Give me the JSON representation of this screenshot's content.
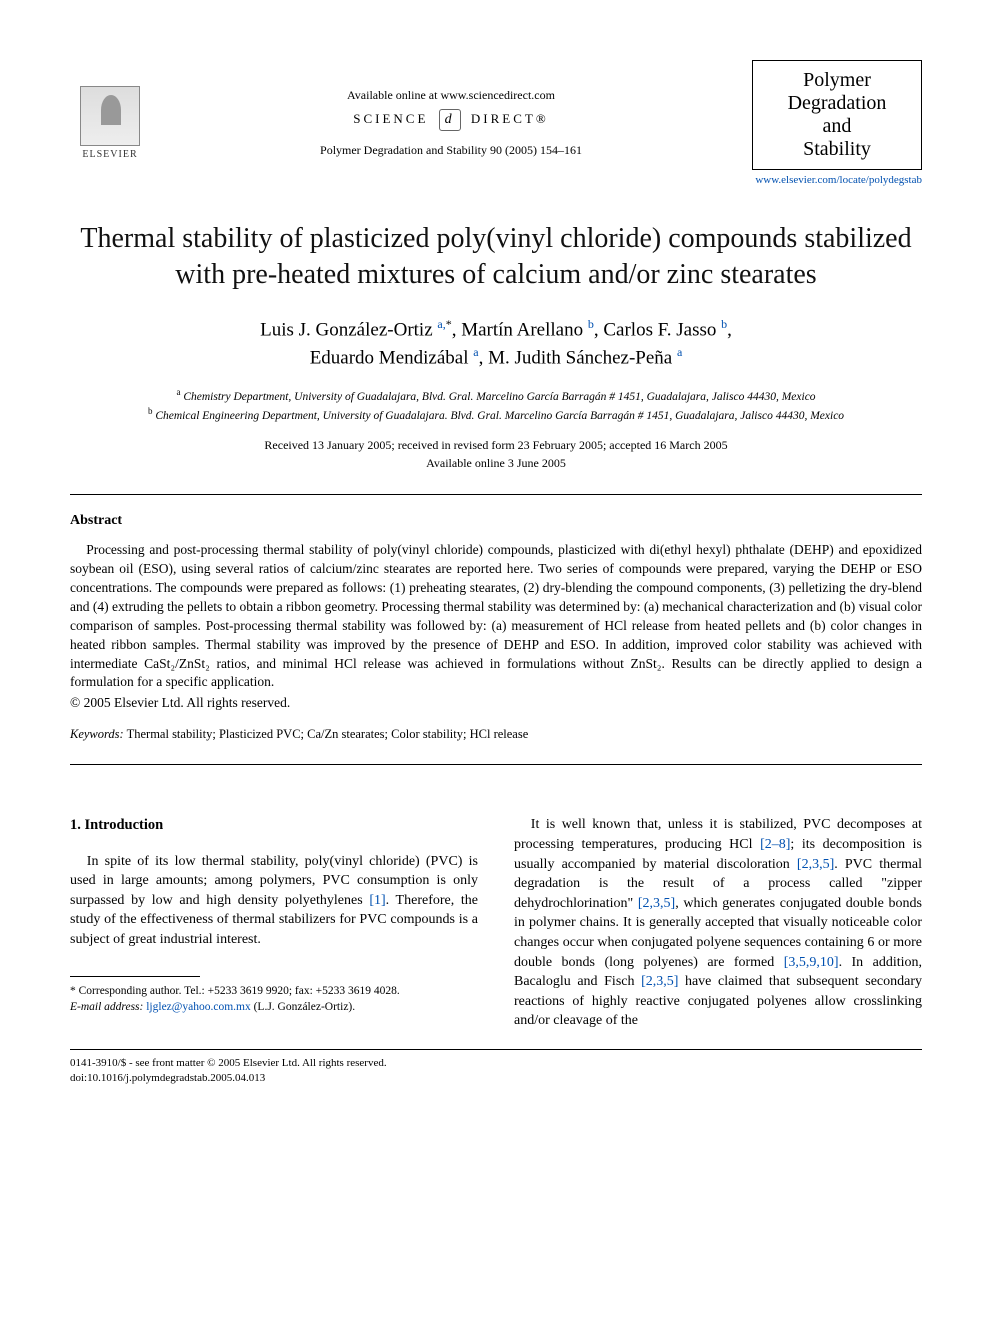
{
  "header": {
    "available_text": "Available online at www.sciencedirect.com",
    "science_direct_left": "SCIENCE",
    "science_direct_right": "DIRECT®",
    "science_direct_glyph": "d",
    "journal_ref": "Polymer Degradation and Stability 90 (2005) 154–161",
    "elsevier_label": "ELSEVIER",
    "journal_box_line1": "Polymer",
    "journal_box_line2": "Degradation",
    "journal_box_line3": "and",
    "journal_box_line4": "Stability",
    "journal_link": "www.elsevier.com/locate/polydegstab"
  },
  "title": "Thermal stability of plasticized poly(vinyl chloride) compounds stabilized with pre-heated mixtures of calcium and/or zinc stearates",
  "authors": {
    "a1_name": "Luis J. González-Ortiz",
    "a1_aff": "a,",
    "a1_star": "*",
    "a2_name": "Martín Arellano",
    "a2_aff": "b",
    "a3_name": "Carlos F. Jasso",
    "a3_aff": "b",
    "a4_name": "Eduardo Mendizábal",
    "a4_aff": "a",
    "a5_name": "M. Judith Sánchez-Peña",
    "a5_aff": "a"
  },
  "affiliations": {
    "a": "Chemistry Department, University of Guadalajara, Blvd. Gral. Marcelino García Barragán # 1451, Guadalajara, Jalisco 44430, Mexico",
    "b": "Chemical Engineering Department, University of Guadalajara. Blvd. Gral. Marcelino García Barragán # 1451, Guadalajara, Jalisco 44430, Mexico"
  },
  "dates": {
    "line1": "Received 13 January 2005; received in revised form 23 February 2005; accepted 16 March 2005",
    "line2": "Available online 3 June 2005"
  },
  "abstract": {
    "heading": "Abstract",
    "body": "Processing and post-processing thermal stability of poly(vinyl chloride) compounds, plasticized with di(ethyl hexyl) phthalate (DEHP) and epoxidized soybean oil (ESO), using several ratios of calcium/zinc stearates are reported here. Two series of compounds were prepared, varying the DEHP or ESO concentrations. The compounds were prepared as follows: (1) preheating stearates, (2) dry-blending the compound components, (3) pelletizing the dry-blend and (4) extruding the pellets to obtain a ribbon geometry. Processing thermal stability was determined by: (a) mechanical characterization and (b) visual color comparison of samples. Post-processing thermal stability was followed by: (a) measurement of HCl release from heated pellets and (b) color changes in heated ribbon samples. Thermal stability was improved by the presence of DEHP and ESO. In addition, improved color stability was achieved with intermediate CaSt₂/ZnSt₂ ratios, and minimal HCl release was achieved in formulations without ZnSt₂. Results can be directly applied to design a formulation for a specific application.",
    "copyright": "© 2005 Elsevier Ltd. All rights reserved."
  },
  "keywords": {
    "label": "Keywords:",
    "text": " Thermal stability; Plasticized PVC; Ca/Zn stearates; Color stability; HCl release"
  },
  "section1": {
    "heading": "1. Introduction",
    "col1_p1_a": "In spite of its low thermal stability, poly(vinyl chloride) (PVC) is used in large amounts; among polymers, PVC consumption is only surpassed by low and high density polyethylenes ",
    "col1_ref1": "[1]",
    "col1_p1_b": ". Therefore, the study of the effectiveness of thermal stabilizers for PVC compounds is a subject of great industrial interest.",
    "col2_p1_a": "It is well known that, unless it is stabilized, PVC decomposes at processing temperatures, producing HCl ",
    "col2_ref1": "[2–8]",
    "col2_p1_b": "; its decomposition is usually accompanied by material discoloration ",
    "col2_ref2": "[2,3,5]",
    "col2_p1_c": ". PVC thermal degradation is the result of a process called \"zipper dehydrochlorination\" ",
    "col2_ref3": "[2,3,5]",
    "col2_p1_d": ", which generates conjugated double bonds in polymer chains. It is generally accepted that visually noticeable color changes occur when conjugated polyene sequences containing 6 or more double bonds (long polyenes) are formed ",
    "col2_ref4": "[3,5,9,10]",
    "col2_p1_e": ". In addition, Bacaloglu and Fisch ",
    "col2_ref5": "[2,3,5]",
    "col2_p1_f": " have claimed that subsequent secondary reactions of highly reactive conjugated polyenes allow crosslinking and/or cleavage of the"
  },
  "footnote": {
    "corr": "* Corresponding author. Tel.: +5233 3619 9920; fax: +5233 3619 4028.",
    "email_label": "E-mail address:",
    "email": "ljglez@yahoo.com.mx",
    "email_tail": " (L.J. González-Ortiz)."
  },
  "footer": {
    "line1": "0141-3910/$ - see front matter © 2005 Elsevier Ltd. All rights reserved.",
    "line2": "doi:10.1016/j.polymdegradstab.2005.04.013"
  }
}
